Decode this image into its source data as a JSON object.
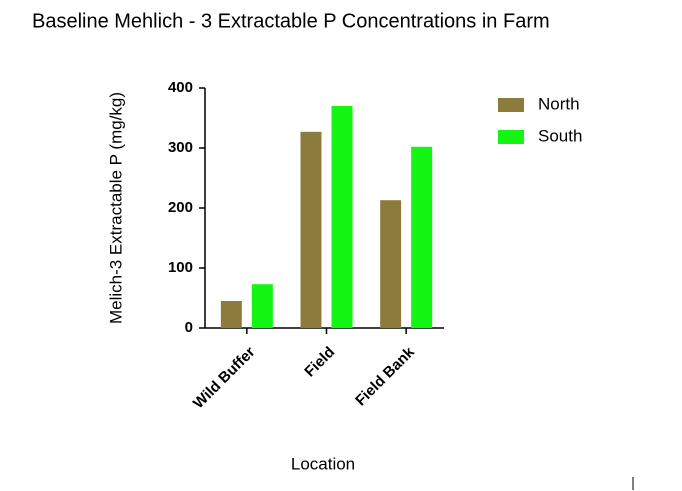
{
  "chart_data": {
    "type": "bar",
    "title": "Baseline Mehlich - 3 Extractable P Concentrations in Farm",
    "x_label": "Location",
    "y_label": "Melich-3 Extractable P (mg/kg)",
    "categories": [
      "Wild Buffer",
      "Field",
      "Field Bank"
    ],
    "series": [
      {
        "name": "North",
        "color": "#8c7c3b",
        "values": [
          45,
          327,
          213
        ]
      },
      {
        "name": "South",
        "color": "#14f514",
        "values": [
          73,
          370,
          302
        ]
      }
    ],
    "ylim": [
      0,
      400
    ],
    "yticks": [
      0,
      100,
      200,
      300,
      400
    ],
    "grid": false,
    "legend": "right"
  }
}
